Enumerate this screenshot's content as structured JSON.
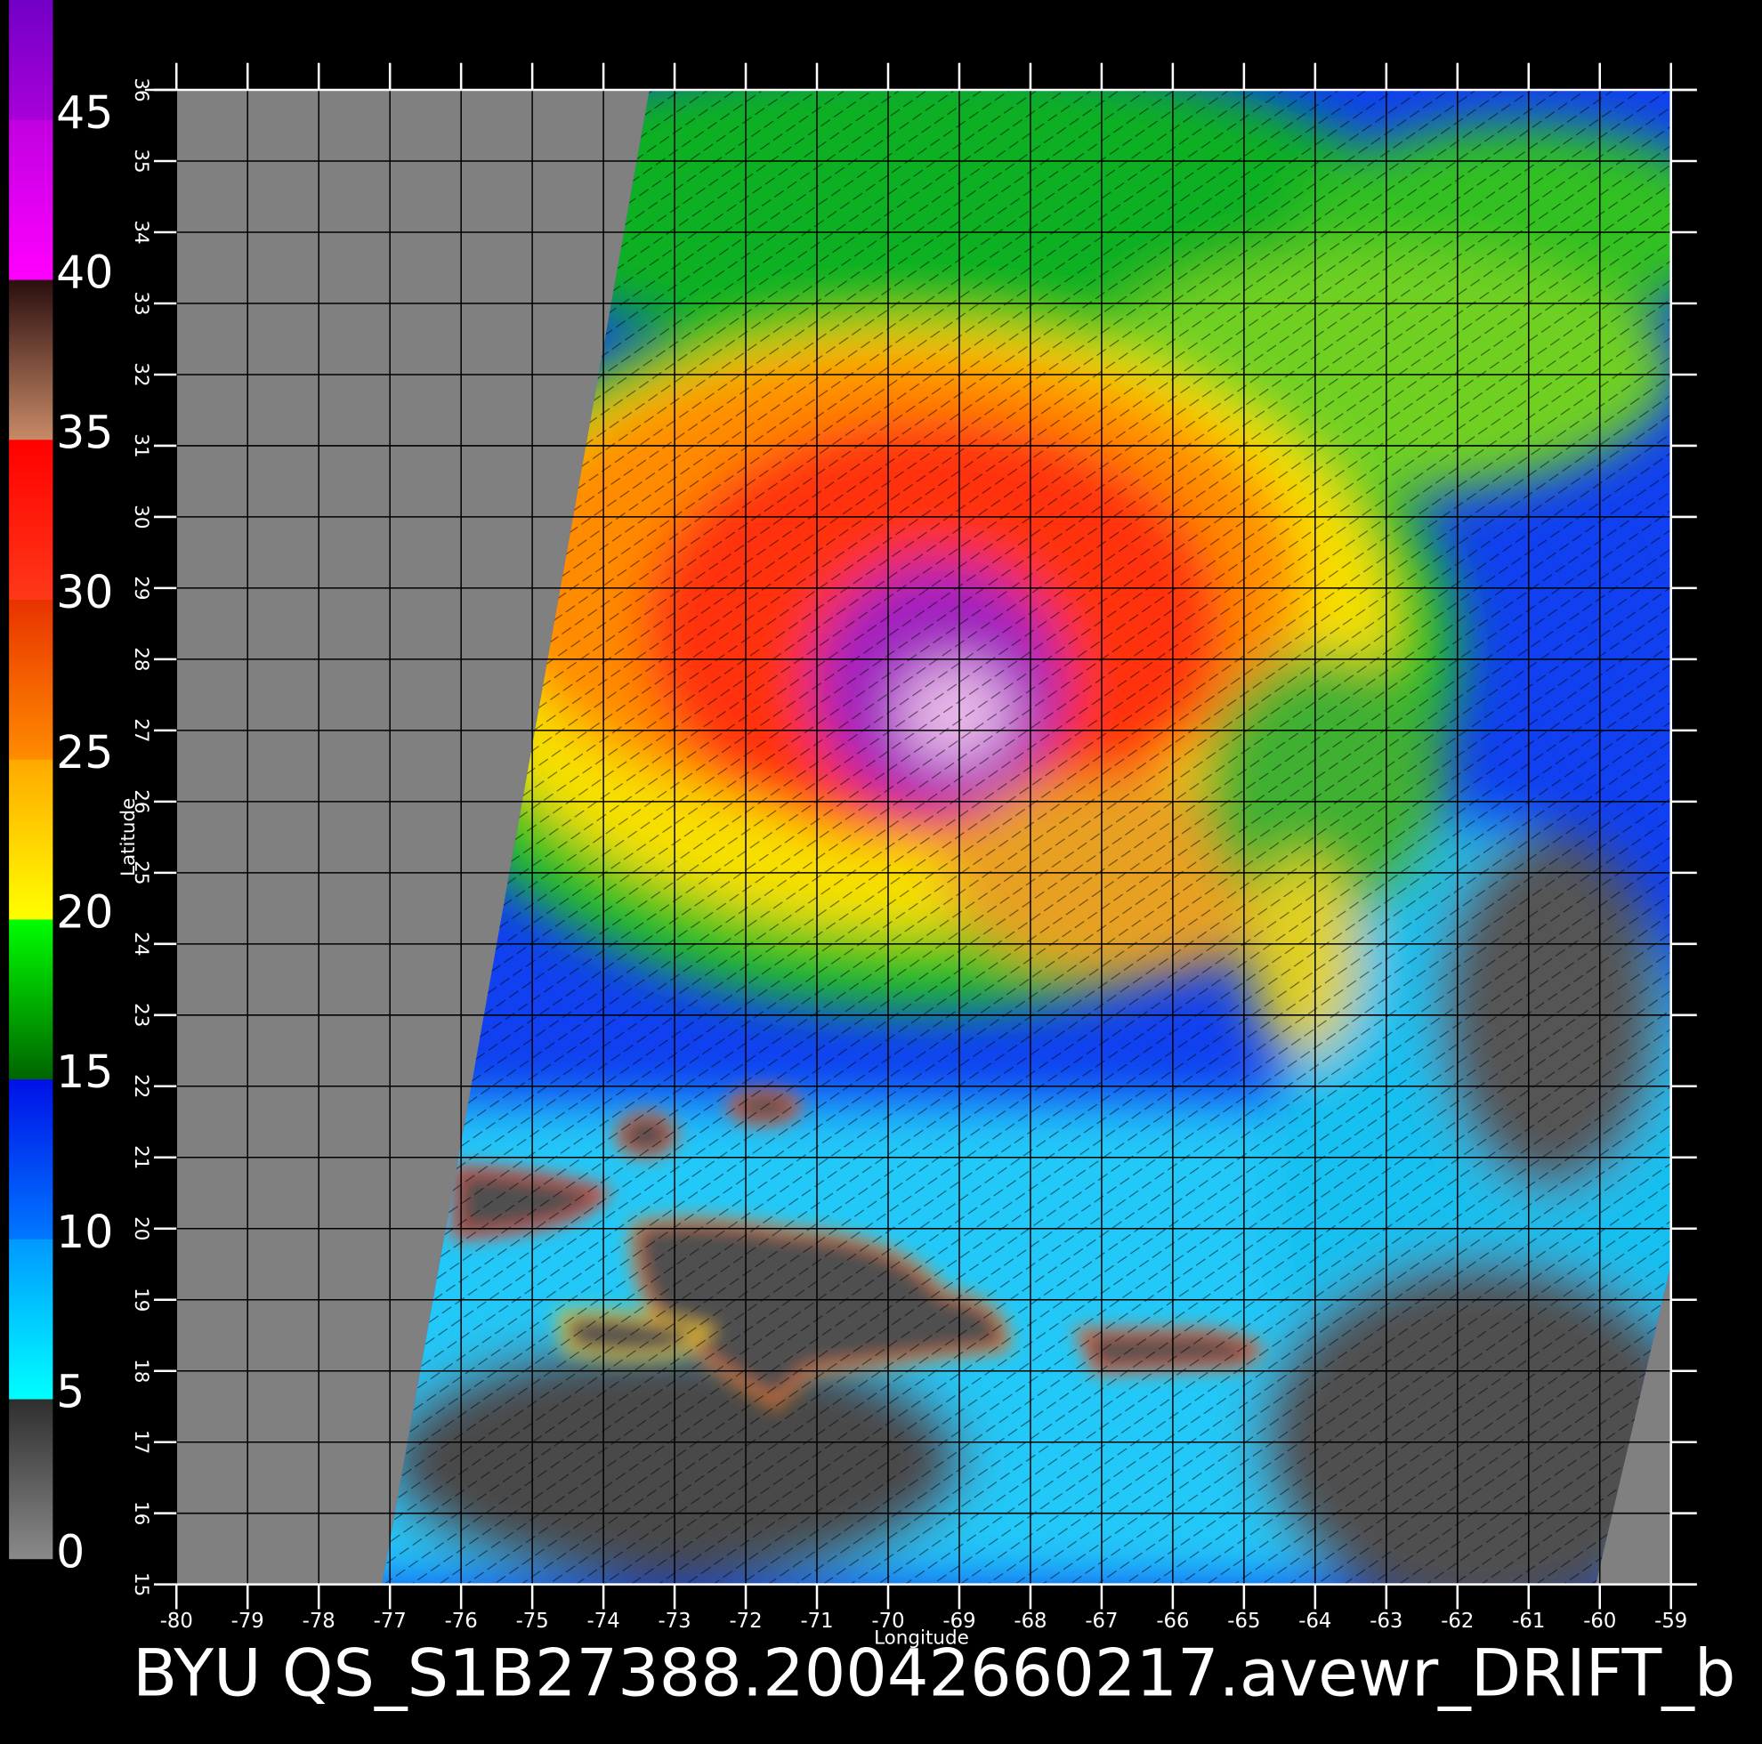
{
  "colorbar": {
    "ticks": [
      0,
      5,
      10,
      15,
      20,
      25,
      30,
      35,
      40,
      45
    ],
    "colors": [
      [
        "#8a8a8a",
        "#2e2e2e"
      ],
      [
        "#00ffff",
        "#0098ff"
      ],
      [
        "#0078ff",
        "#0010e8"
      ],
      [
        "#006400",
        "#00ff00"
      ],
      [
        "#ffff00",
        "#ffa800"
      ],
      [
        "#ff8c00",
        "#e83200"
      ],
      [
        "#ff3818",
        "#ff0000"
      ],
      [
        "#c88a68",
        "#2a0e0e"
      ],
      [
        "#ff00ff",
        "#c000e0"
      ],
      [
        "#a800d8",
        "#6000c0"
      ]
    ]
  },
  "map": {
    "xlabel": "Longitude",
    "ylabel": "Latitude",
    "xlim": [
      -80,
      -59
    ],
    "ylim": [
      15,
      36
    ],
    "xticks": [
      -80,
      -79,
      -78,
      -77,
      -76,
      -75,
      -74,
      -73,
      -72,
      -71,
      -70,
      -69,
      -68,
      -67,
      -66,
      -65,
      -64,
      -63,
      -62,
      -61,
      -60,
      -59
    ],
    "yticks": [
      15,
      16,
      17,
      18,
      19,
      20,
      21,
      22,
      23,
      24,
      25,
      26,
      27,
      28,
      29,
      30,
      31,
      32,
      33,
      34,
      35,
      36
    ],
    "grid": true
  },
  "title": "BYU QS_S1B27388.20042660217.avewr_DRIFT_b"
}
